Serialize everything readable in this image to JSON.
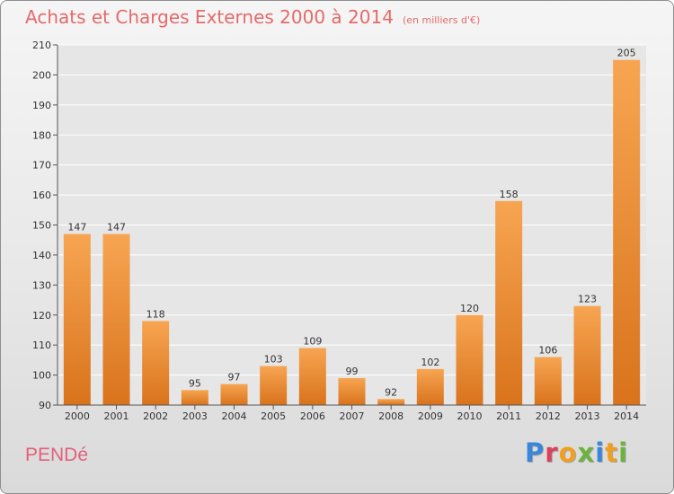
{
  "header": {
    "title": "Achats et Charges Externes 2000 à 2014",
    "subtitle": "(en milliers d'€)"
  },
  "footer": {
    "commune": "PENDé",
    "logo_text": "Proxiti"
  },
  "colors": {
    "bar_light": "#f7a552",
    "bar_dark": "#d9731c",
    "title": "#e36a6a",
    "commune": "#e3607a",
    "logo_letters": [
      "#3a86d8",
      "#d9425a",
      "#f0a020",
      "#6cb33e",
      "#3a86d8",
      "#f0a020",
      "#6cb33e"
    ]
  },
  "chart_data": {
    "type": "bar",
    "title": "Achats et Charges Externes 2000 à 2014",
    "subtitle": "(en milliers d'€)",
    "categories": [
      "2000",
      "2001",
      "2002",
      "2003",
      "2004",
      "2005",
      "2006",
      "2007",
      "2008",
      "2009",
      "2010",
      "2011",
      "2012",
      "2013",
      "2014"
    ],
    "values": [
      147,
      147,
      118,
      95,
      97,
      103,
      109,
      99,
      92,
      102,
      120,
      158,
      106,
      123,
      205
    ],
    "ylim": [
      90,
      210
    ],
    "yticks": [
      90,
      100,
      110,
      120,
      130,
      140,
      150,
      160,
      170,
      180,
      190,
      200,
      210
    ],
    "grid": true,
    "legend": "none"
  }
}
